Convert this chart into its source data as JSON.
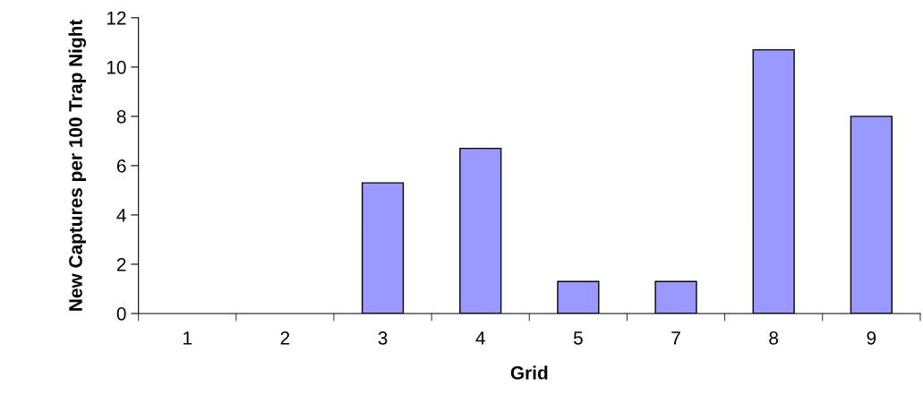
{
  "chart_data": {
    "type": "bar",
    "xlabel": "Grid",
    "ylabel": "New Captures per 100 Trap Night",
    "categories": [
      "1",
      "2",
      "3",
      "4",
      "5",
      "7",
      "8",
      "9"
    ],
    "values": [
      0,
      0,
      5.3,
      6.7,
      1.3,
      1.3,
      10.7,
      8.0
    ],
    "color": "#9999ff",
    "ylim": [
      0,
      12
    ],
    "yticks": [
      0,
      2,
      4,
      6,
      8,
      10,
      12
    ],
    "grid": false
  }
}
